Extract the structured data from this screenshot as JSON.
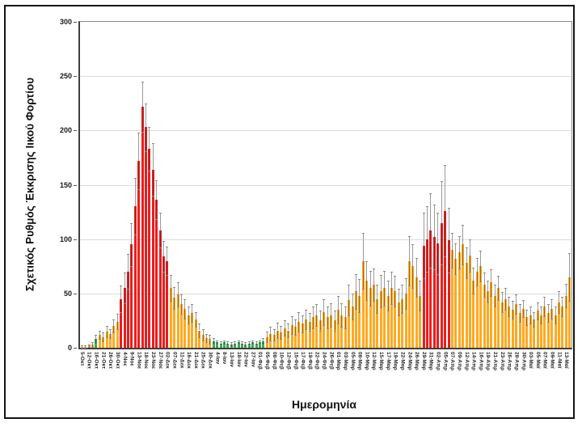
{
  "chart_data": {
    "type": "bar",
    "title": "",
    "xlabel": "Ημερομηνία",
    "ylabel": "Σχετικός Ρυθμός Έκκρισης Ιικού Φορτίου",
    "ylim": [
      0,
      300
    ],
    "yticks": [
      0,
      50,
      100,
      150,
      200,
      250,
      300
    ],
    "grid": true,
    "legend": "none",
    "label_every": 2,
    "colors": {
      "r": "#ec1c1c",
      "o": "#ffa91f",
      "g": "#2ead4b",
      "error": "#9a9a9a"
    },
    "categories": [
      "5-Οκτ",
      "12-Οκτ",
      "16-Οκτ",
      "21-Οκτ",
      "26-Οκτ",
      "30-Οκτ",
      "4-Νοε",
      "9-Νοε",
      "13-Νοε",
      "18-Νοε",
      "23-Νοε",
      "27-Νοε",
      "02-Δεκ",
      "07-Δεκ",
      "11-Δεκ",
      "16-Δεκ",
      "21-Δεκ",
      "25-Δεκ",
      "30-Δεκ",
      "4-Ιαν",
      "8-Ιαν",
      "13-Ιαν",
      "18-Ιαν",
      "22-Ιαν",
      "27-Ιαν",
      "01-Φεβ",
      "05-Φεβ",
      "08-Φεβ",
      "10-Φεβ",
      "12-Φεβ",
      "15-Φεβ",
      "17-Φεβ",
      "19-Φεβ",
      "22-Φεβ",
      "24-Φεβ",
      "26-Φεβ",
      "01-Μαρ",
      "03-Μαρ",
      "05-Μαρ",
      "08-Μαρ",
      "10-Μαρ",
      "12-Μαρ",
      "15-Μαρ",
      "17-Μαρ",
      "19-Μαρ",
      "22-Μαρ",
      "24-Μαρ",
      "26-Μαρ",
      "29-Μαρ",
      "31-Μαρ",
      "02-Απρ",
      "05-Απρ",
      "07-Απρ",
      "09-Απρ",
      "12-Απρ",
      "14-Απρ",
      "16-Απρ",
      "19-Απρ",
      "21-Απρ",
      "23-Απρ",
      "26-Απρ",
      "28-Απρ",
      "30-Απρ",
      "03-Μαϊ",
      "05-Μαϊ",
      "07-Μαϊ",
      "09-Μαϊ",
      "11-Μαϊ",
      "13-Μαϊ"
    ],
    "bars": [
      [
        1,
        1,
        "o"
      ],
      [
        1,
        1,
        "o"
      ],
      [
        2,
        1,
        "o"
      ],
      [
        3,
        2,
        "o"
      ],
      [
        8,
        4,
        "g"
      ],
      [
        12,
        4,
        "o"
      ],
      [
        10,
        4,
        "o"
      ],
      [
        15,
        5,
        "o"
      ],
      [
        13,
        4,
        "o"
      ],
      [
        20,
        6,
        "o"
      ],
      [
        24,
        7,
        "o"
      ],
      [
        45,
        12,
        "r"
      ],
      [
        55,
        14,
        "r"
      ],
      [
        70,
        16,
        "r"
      ],
      [
        95,
        20,
        "r"
      ],
      [
        130,
        26,
        "r"
      ],
      [
        172,
        26,
        "r"
      ],
      [
        222,
        23,
        "r"
      ],
      [
        203,
        22,
        "r"
      ],
      [
        183,
        20,
        "r"
      ],
      [
        164,
        24,
        "r"
      ],
      [
        136,
        18,
        "r"
      ],
      [
        108,
        16,
        "r"
      ],
      [
        84,
        14,
        "r"
      ],
      [
        80,
        13,
        "r"
      ],
      [
        55,
        12,
        "o"
      ],
      [
        46,
        10,
        "o"
      ],
      [
        49,
        11,
        "o"
      ],
      [
        40,
        9,
        "o"
      ],
      [
        36,
        9,
        "o"
      ],
      [
        30,
        8,
        "o"
      ],
      [
        32,
        8,
        "o"
      ],
      [
        26,
        7,
        "o"
      ],
      [
        16,
        6,
        "o"
      ],
      [
        12,
        5,
        "o"
      ],
      [
        9,
        4,
        "o"
      ],
      [
        8,
        4,
        "o"
      ],
      [
        6,
        3,
        "g"
      ],
      [
        5,
        2,
        "g"
      ],
      [
        4,
        2,
        "g"
      ],
      [
        5,
        2,
        "g"
      ],
      [
        4,
        2,
        "g"
      ],
      [
        3,
        2,
        "g"
      ],
      [
        4,
        2,
        "g"
      ],
      [
        5,
        2,
        "g"
      ],
      [
        4,
        2,
        "g"
      ],
      [
        3,
        2,
        "g"
      ],
      [
        4,
        2,
        "g"
      ],
      [
        5,
        2,
        "g"
      ],
      [
        4,
        2,
        "g"
      ],
      [
        5,
        2,
        "g"
      ],
      [
        6,
        3,
        "g"
      ],
      [
        10,
        5,
        "o"
      ],
      [
        13,
        6,
        "o"
      ],
      [
        12,
        5,
        "o"
      ],
      [
        16,
        7,
        "o"
      ],
      [
        14,
        6,
        "o"
      ],
      [
        18,
        7,
        "o"
      ],
      [
        16,
        6,
        "o"
      ],
      [
        21,
        8,
        "o"
      ],
      [
        19,
        7,
        "o"
      ],
      [
        24,
        9,
        "o"
      ],
      [
        22,
        8,
        "o"
      ],
      [
        26,
        9,
        "o"
      ],
      [
        24,
        8,
        "o"
      ],
      [
        28,
        10,
        "o"
      ],
      [
        30,
        10,
        "o"
      ],
      [
        25,
        9,
        "o"
      ],
      [
        33,
        12,
        "o"
      ],
      [
        28,
        10,
        "o"
      ],
      [
        30,
        11,
        "o"
      ],
      [
        25,
        9,
        "o"
      ],
      [
        35,
        13,
        "o"
      ],
      [
        30,
        11,
        "o"
      ],
      [
        28,
        10,
        "o"
      ],
      [
        44,
        14,
        "o"
      ],
      [
        38,
        12,
        "o"
      ],
      [
        52,
        16,
        "o"
      ],
      [
        48,
        15,
        "o"
      ],
      [
        80,
        26,
        "o"
      ],
      [
        62,
        18,
        "o"
      ],
      [
        55,
        16,
        "o"
      ],
      [
        58,
        15,
        "o"
      ],
      [
        45,
        13,
        "o"
      ],
      [
        52,
        15,
        "o"
      ],
      [
        55,
        16,
        "o"
      ],
      [
        48,
        14,
        "o"
      ],
      [
        55,
        15,
        "o"
      ],
      [
        52,
        14,
        "o"
      ],
      [
        42,
        12,
        "o"
      ],
      [
        45,
        13,
        "o"
      ],
      [
        50,
        14,
        "o"
      ],
      [
        80,
        23,
        "o"
      ],
      [
        75,
        20,
        "o"
      ],
      [
        65,
        18,
        "o"
      ],
      [
        48,
        14,
        "o"
      ],
      [
        94,
        30,
        "r"
      ],
      [
        100,
        30,
        "r"
      ],
      [
        108,
        34,
        "r"
      ],
      [
        102,
        30,
        "r"
      ],
      [
        96,
        28,
        "r"
      ],
      [
        115,
        38,
        "r"
      ],
      [
        126,
        42,
        "r"
      ],
      [
        99,
        30,
        "r"
      ],
      [
        90,
        16,
        "o"
      ],
      [
        82,
        14,
        "o"
      ],
      [
        88,
        15,
        "o"
      ],
      [
        95,
        18,
        "o"
      ],
      [
        78,
        14,
        "o"
      ],
      [
        85,
        15,
        "o"
      ],
      [
        62,
        12,
        "o"
      ],
      [
        70,
        13,
        "o"
      ],
      [
        75,
        14,
        "o"
      ],
      [
        58,
        11,
        "o"
      ],
      [
        52,
        10,
        "o"
      ],
      [
        60,
        12,
        "o"
      ],
      [
        48,
        10,
        "o"
      ],
      [
        55,
        11,
        "o"
      ],
      [
        42,
        9,
        "o"
      ],
      [
        45,
        10,
        "o"
      ],
      [
        38,
        9,
        "o"
      ],
      [
        35,
        8,
        "o"
      ],
      [
        40,
        9,
        "o"
      ],
      [
        32,
        8,
        "o"
      ],
      [
        36,
        8,
        "o"
      ],
      [
        28,
        7,
        "o"
      ],
      [
        30,
        8,
        "o"
      ],
      [
        26,
        7,
        "o"
      ],
      [
        34,
        8,
        "o"
      ],
      [
        30,
        8,
        "o"
      ],
      [
        38,
        9,
        "o"
      ],
      [
        32,
        8,
        "o"
      ],
      [
        36,
        9,
        "o"
      ],
      [
        30,
        8,
        "o"
      ],
      [
        42,
        10,
        "o"
      ],
      [
        38,
        9,
        "o"
      ],
      [
        48,
        11,
        "o"
      ],
      [
        65,
        22,
        "o"
      ]
    ]
  }
}
